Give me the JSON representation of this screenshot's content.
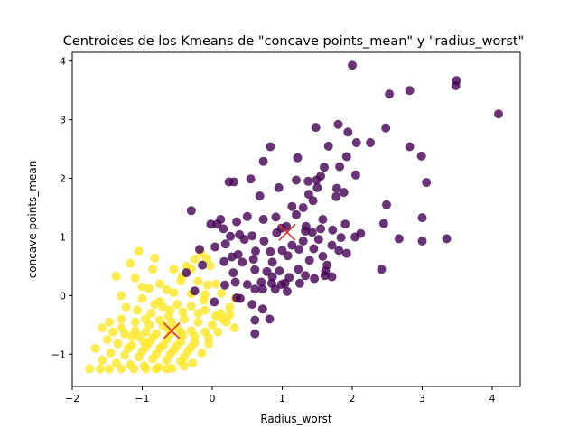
{
  "chart_data": {
    "type": "scatter",
    "title": "Centroides de los Kmeans de \"concave points_mean\" y \"radius_worst\"",
    "xlabel": "Radius_worst",
    "ylabel": "concave points_mean",
    "xlim": [
      -2.0,
      4.4
    ],
    "ylim": [
      -1.55,
      4.15
    ],
    "xticks": [
      -2,
      -1,
      0,
      1,
      2,
      3,
      4
    ],
    "yticks": [
      -1,
      0,
      1,
      2,
      3,
      4
    ],
    "grid": false,
    "colors": {
      "cluster_0": "#440154",
      "cluster_1": "#fde725",
      "centroid": "#e8302a"
    },
    "series": [
      {
        "cluster": 0,
        "color": "#440154",
        "points": [
          [
            2.0,
            3.93
          ],
          [
            3.49,
            3.67
          ],
          [
            3.48,
            3.58
          ],
          [
            2.53,
            3.44
          ],
          [
            2.82,
            3.5
          ],
          [
            4.09,
            3.1
          ],
          [
            1.48,
            2.87
          ],
          [
            1.8,
            2.92
          ],
          [
            2.48,
            2.86
          ],
          [
            1.94,
            2.79
          ],
          [
            2.26,
            2.61
          ],
          [
            2.06,
            2.61
          ],
          [
            1.66,
            2.55
          ],
          [
            2.82,
            2.54
          ],
          [
            0.83,
            2.54
          ],
          [
            2.99,
            2.38
          ],
          [
            1.92,
            2.37
          ],
          [
            1.22,
            2.35
          ],
          [
            0.73,
            2.29
          ],
          [
            1.82,
            2.2
          ],
          [
            1.6,
            2.19
          ],
          [
            2.05,
            2.06
          ],
          [
            1.55,
            2.04
          ],
          [
            3.06,
            1.93
          ],
          [
            1.37,
            1.95
          ],
          [
            1.49,
            1.97
          ],
          [
            0.24,
            1.94
          ],
          [
            0.31,
            1.94
          ],
          [
            0.55,
            1.99
          ],
          [
            1.2,
            1.97
          ],
          [
            0.95,
            1.84
          ],
          [
            1.78,
            1.83
          ],
          [
            1.5,
            1.84
          ],
          [
            1.38,
            1.73
          ],
          [
            1.88,
            1.76
          ],
          [
            1.77,
            1.69
          ],
          [
            0.68,
            1.7
          ],
          [
            1.44,
            1.62
          ],
          [
            2.49,
            1.55
          ],
          [
            1.3,
            1.5
          ],
          [
            1.14,
            1.52
          ],
          [
            -0.3,
            1.45
          ],
          [
            0.91,
            1.34
          ],
          [
            0.73,
            1.3
          ],
          [
            0.5,
            1.35
          ],
          [
            0.12,
            1.3
          ],
          [
            1.58,
            1.3
          ],
          [
            0.35,
            1.26
          ],
          [
            0.07,
            1.22
          ],
          [
            0.16,
            1.14
          ],
          [
            -0.02,
            1.22
          ],
          [
            1.9,
            1.22
          ],
          [
            2.45,
            1.23
          ],
          [
            3.0,
            1.33
          ],
          [
            1.06,
            1.18
          ],
          [
            1.55,
            1.14
          ],
          [
            1.33,
            1.1
          ],
          [
            1.72,
            1.12
          ],
          [
            1.43,
            1.08
          ],
          [
            0.92,
            1.07
          ],
          [
            0.57,
            1.02
          ],
          [
            0.39,
            1.04
          ],
          [
            0.26,
            1.01
          ],
          [
            2.12,
            1.06
          ],
          [
            2.04,
            1.0
          ],
          [
            1.84,
            0.99
          ],
          [
            1.52,
            0.96
          ],
          [
            1.3,
            0.93
          ],
          [
            0.74,
            0.93
          ],
          [
            0.46,
            0.96
          ],
          [
            0.19,
            0.88
          ],
          [
            0.04,
            0.83
          ],
          [
            -0.18,
            0.79
          ],
          [
            1.71,
            0.86
          ],
          [
            1.45,
            0.8
          ],
          [
            2.67,
            0.97
          ],
          [
            3.0,
            0.93
          ],
          [
            3.35,
            0.97
          ],
          [
            1.24,
            0.79
          ],
          [
            1.0,
            0.77
          ],
          [
            0.83,
            0.75
          ],
          [
            0.62,
            0.76
          ],
          [
            0.37,
            0.7
          ],
          [
            1.58,
            0.67
          ],
          [
            1.81,
            0.77
          ],
          [
            1.92,
            0.72
          ],
          [
            1.08,
            0.68
          ],
          [
            1.39,
            0.6
          ],
          [
            0.43,
            0.57
          ],
          [
            0.17,
            0.58
          ],
          [
            -0.14,
            0.52
          ],
          [
            1.64,
            0.52
          ],
          [
            2.42,
            0.45
          ],
          [
            1.23,
            0.45
          ],
          [
            0.96,
            0.42
          ],
          [
            0.78,
            0.41
          ],
          [
            0.61,
            0.44
          ],
          [
            0.3,
            0.39
          ],
          [
            -0.37,
            0.39
          ],
          [
            1.1,
            0.31
          ],
          [
            1.46,
            0.29
          ],
          [
            1.33,
            0.34
          ],
          [
            1.61,
            0.34
          ],
          [
            1.71,
            0.32
          ],
          [
            0.99,
            0.19
          ],
          [
            0.85,
            0.21
          ],
          [
            0.7,
            0.23
          ],
          [
            0.5,
            0.19
          ],
          [
            0.33,
            0.23
          ],
          [
            0.18,
            0.18
          ],
          [
            1.25,
            0.21
          ],
          [
            1.04,
            0.21
          ],
          [
            0.9,
            0.11
          ],
          [
            0.72,
            0.11
          ],
          [
            0.61,
            0.11
          ],
          [
            1.07,
            0.07
          ],
          [
            -0.25,
            0.08
          ],
          [
            0.35,
            -0.04
          ],
          [
            0.57,
            -0.15
          ],
          [
            0.72,
            -0.23
          ],
          [
            0.03,
            -0.11
          ],
          [
            0.61,
            -0.42
          ],
          [
            0.82,
            -0.4
          ],
          [
            0.61,
            -0.65
          ],
          [
            0.4,
            -0.05
          ],
          [
            0.86,
            0.32
          ],
          [
            1.14,
            0.86
          ],
          [
            0.28,
            0.66
          ],
          [
            0.59,
            0.62
          ],
          [
            0.86,
            0.57
          ],
          [
            1.2,
            1.38
          ],
          [
            0.99,
            1.15
          ],
          [
            1.34,
            1.18
          ],
          [
            1.62,
            0.42
          ]
        ]
      },
      {
        "cluster": 1,
        "color": "#fde725",
        "points": [
          [
            -1.05,
            0.76
          ],
          [
            -0.82,
            0.64
          ],
          [
            -1.17,
            0.55
          ],
          [
            -1.37,
            0.33
          ],
          [
            -1.1,
            0.3
          ],
          [
            -0.75,
            0.2
          ],
          [
            -0.55,
            0.45
          ],
          [
            -0.43,
            0.33
          ],
          [
            -0.3,
            0.45
          ],
          [
            -0.37,
            0.5
          ],
          [
            -0.16,
            0.72
          ],
          [
            -0.08,
            0.63
          ],
          [
            -0.25,
            0.62
          ],
          [
            -0.03,
            0.51
          ],
          [
            -0.45,
            0.25
          ],
          [
            -0.2,
            0.24
          ],
          [
            -0.07,
            0.18
          ],
          [
            0.05,
            0.2
          ],
          [
            0.13,
            0.04
          ],
          [
            0.33,
            -0.05
          ],
          [
            -0.12,
            -0.08
          ],
          [
            -0.3,
            0.03
          ],
          [
            -0.65,
            0.1
          ],
          [
            -0.9,
            0.12
          ],
          [
            -1.3,
            0.0
          ],
          [
            -1.0,
            -0.05
          ],
          [
            -0.75,
            -0.1
          ],
          [
            -0.5,
            -0.15
          ],
          [
            -0.3,
            -0.18
          ],
          [
            -0.1,
            -0.25
          ],
          [
            0.12,
            -0.3
          ],
          [
            0.2,
            -0.45
          ],
          [
            0.32,
            -0.55
          ],
          [
            0.25,
            -0.33
          ],
          [
            -1.23,
            -0.2
          ],
          [
            -1.07,
            -0.25
          ],
          [
            -0.87,
            -0.3
          ],
          [
            -0.62,
            -0.35
          ],
          [
            -0.4,
            -0.4
          ],
          [
            -0.2,
            -0.45
          ],
          [
            0.0,
            -0.5
          ],
          [
            0.08,
            -0.62
          ],
          [
            -1.47,
            -0.45
          ],
          [
            -1.3,
            -0.4
          ],
          [
            -1.1,
            -0.45
          ],
          [
            -0.9,
            -0.5
          ],
          [
            -0.7,
            -0.52
          ],
          [
            -0.5,
            -0.55
          ],
          [
            -0.3,
            -0.6
          ],
          [
            -0.1,
            -0.62
          ],
          [
            -1.57,
            -0.55
          ],
          [
            -1.42,
            -0.62
          ],
          [
            -1.25,
            -0.65
          ],
          [
            -1.05,
            -0.7
          ],
          [
            -0.85,
            -0.72
          ],
          [
            -0.65,
            -0.75
          ],
          [
            -0.45,
            -0.78
          ],
          [
            -0.25,
            -0.8
          ],
          [
            -0.05,
            -0.82
          ],
          [
            -1.5,
            -0.75
          ],
          [
            -1.35,
            -0.82
          ],
          [
            -1.15,
            -0.85
          ],
          [
            -0.95,
            -0.88
          ],
          [
            -0.75,
            -0.9
          ],
          [
            -0.55,
            -0.93
          ],
          [
            -0.35,
            -0.95
          ],
          [
            -0.15,
            -0.98
          ],
          [
            -1.67,
            -0.9
          ],
          [
            -1.45,
            -0.98
          ],
          [
            -1.25,
            -1.02
          ],
          [
            -1.05,
            -1.05
          ],
          [
            -0.85,
            -1.08
          ],
          [
            -0.65,
            -1.1
          ],
          [
            -0.45,
            -1.12
          ],
          [
            -0.28,
            -1.15
          ],
          [
            -1.57,
            -1.1
          ],
          [
            -1.37,
            -1.15
          ],
          [
            -1.17,
            -1.18
          ],
          [
            -0.97,
            -1.2
          ],
          [
            -0.77,
            -1.22
          ],
          [
            -0.57,
            -1.24
          ],
          [
            -0.4,
            -1.2
          ],
          [
            -1.75,
            -1.25
          ],
          [
            -1.6,
            -1.25
          ],
          [
            -1.47,
            -1.25
          ],
          [
            -1.3,
            -1.25
          ],
          [
            -1.12,
            -1.25
          ],
          [
            -0.95,
            -1.25
          ],
          [
            -0.8,
            -1.25
          ],
          [
            -0.65,
            -1.25
          ],
          [
            -1.1,
            -0.6
          ],
          [
            -0.95,
            -0.62
          ],
          [
            -0.8,
            -0.65
          ],
          [
            -0.6,
            -0.65
          ],
          [
            -0.42,
            -0.68
          ],
          [
            -0.95,
            -0.4
          ],
          [
            -0.75,
            -0.42
          ],
          [
            -0.58,
            -0.45
          ],
          [
            -0.82,
            -0.15
          ],
          [
            -0.6,
            -0.25
          ],
          [
            -0.42,
            -0.28
          ],
          [
            -0.2,
            -0.3
          ],
          [
            0.05,
            -0.35
          ],
          [
            -1.2,
            -0.9
          ],
          [
            -0.9,
            -0.8
          ],
          [
            -0.7,
            -0.85
          ],
          [
            -0.5,
            -0.85
          ],
          [
            -0.3,
            -0.88
          ],
          [
            -1.0,
            -0.95
          ],
          [
            -0.8,
            -1.0
          ],
          [
            -0.6,
            -1.0
          ],
          [
            -0.4,
            -1.05
          ],
          [
            -1.3,
            -0.55
          ],
          [
            -1.15,
            -0.7
          ],
          [
            -0.98,
            -0.78
          ],
          [
            -0.62,
            -0.58
          ],
          [
            -0.45,
            -0.62
          ],
          [
            -0.25,
            -0.7
          ],
          [
            -0.05,
            -0.72
          ],
          [
            0.15,
            -0.4
          ],
          [
            -0.1,
            0.02
          ],
          [
            0.25,
            -0.2
          ],
          [
            -0.55,
            0.05
          ],
          [
            -0.85,
            0.45
          ],
          [
            -1.0,
            0.15
          ],
          [
            -0.7,
            -0.2
          ]
        ]
      }
    ],
    "centroids": [
      {
        "label": "0",
        "x": 1.07,
        "y": 1.08
      },
      {
        "label": "1",
        "x": -0.58,
        "y": -0.6
      }
    ]
  }
}
